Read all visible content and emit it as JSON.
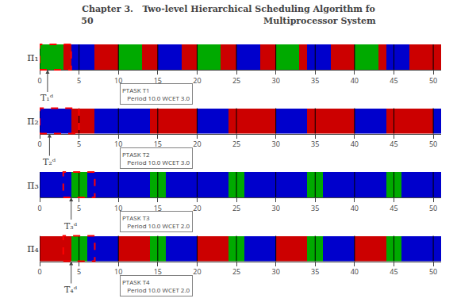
{
  "chart_data": {
    "type": "timeline",
    "title": "Chapter 3.   Two-level Hierarchical Scheduling Algorithm fo",
    "subtitle": "50                                                        Multiprocessor System",
    "xlim": [
      0,
      51
    ],
    "xticks": [
      0,
      5,
      10,
      15,
      20,
      25,
      30,
      35,
      40,
      45,
      50
    ],
    "grid": true,
    "rows": [
      {
        "name": "π₁",
        "segments": [
          {
            "start": 0,
            "end": 3,
            "color": "#00aa00"
          },
          {
            "start": 3,
            "end": 4,
            "color": "#cc0000"
          },
          {
            "start": 4,
            "end": 7,
            "color": "#0000cc"
          },
          {
            "start": 7,
            "end": 10,
            "color": "#cc0000"
          },
          {
            "start": 10,
            "end": 13,
            "color": "#00aa00"
          },
          {
            "start": 13,
            "end": 15,
            "color": "#cc0000"
          },
          {
            "start": 15,
            "end": 18,
            "color": "#0000cc"
          },
          {
            "start": 18,
            "end": 20,
            "color": "#cc0000"
          },
          {
            "start": 20,
            "end": 23,
            "color": "#00aa00"
          },
          {
            "start": 23,
            "end": 25,
            "color": "#cc0000"
          },
          {
            "start": 25,
            "end": 28,
            "color": "#0000cc"
          },
          {
            "start": 28,
            "end": 30,
            "color": "#cc0000"
          },
          {
            "start": 30,
            "end": 33,
            "color": "#00aa00"
          },
          {
            "start": 33,
            "end": 34,
            "color": "#cc0000"
          },
          {
            "start": 34,
            "end": 37,
            "color": "#0000cc"
          },
          {
            "start": 37,
            "end": 40,
            "color": "#cc0000"
          },
          {
            "start": 40,
            "end": 43,
            "color": "#00aa00"
          },
          {
            "start": 43,
            "end": 44,
            "color": "#cc0000"
          },
          {
            "start": 44,
            "end": 47,
            "color": "#0000cc"
          },
          {
            "start": 47,
            "end": 51,
            "color": "#cc0000"
          }
        ],
        "zoom": {
          "start": 0,
          "end": 4,
          "color": "#ff0000"
        },
        "annotation": "PTASK T1\n   Period 10.0 WCET 3.0",
        "label": "T₁ᵈ"
      },
      {
        "name": "π₂",
        "segments": [
          {
            "start": 0,
            "end": 4,
            "color": "#0000cc"
          },
          {
            "start": 4,
            "end": 7,
            "color": "#cc0000"
          },
          {
            "start": 7,
            "end": 10,
            "color": "#0000cc"
          },
          {
            "start": 10,
            "end": 14,
            "color": "#0000cc"
          },
          {
            "start": 14,
            "end": 20,
            "color": "#cc0000"
          },
          {
            "start": 20,
            "end": 24,
            "color": "#0000cc"
          },
          {
            "start": 24,
            "end": 30,
            "color": "#cc0000"
          },
          {
            "start": 30,
            "end": 34,
            "color": "#0000cc"
          },
          {
            "start": 34,
            "end": 40,
            "color": "#cc0000"
          },
          {
            "start": 40,
            "end": 44,
            "color": "#0000cc"
          },
          {
            "start": 44,
            "end": 50,
            "color": "#cc0000"
          },
          {
            "start": 50,
            "end": 51,
            "color": "#0000cc"
          }
        ],
        "zoom": {
          "start": 0,
          "end": 5,
          "color": "#ff0000"
        },
        "annotation": "PTASK T2\n   Period 10.0 WCET 3.0",
        "label": "T₂ᵈ"
      },
      {
        "name": "π₃",
        "segments": [
          {
            "start": 0,
            "end": 4,
            "color": "#0000cc"
          },
          {
            "start": 4,
            "end": 6,
            "color": "#00aa00"
          },
          {
            "start": 6,
            "end": 10,
            "color": "#0000cc"
          },
          {
            "start": 10,
            "end": 14,
            "color": "#0000cc"
          },
          {
            "start": 14,
            "end": 16,
            "color": "#00aa00"
          },
          {
            "start": 16,
            "end": 20,
            "color": "#0000cc"
          },
          {
            "start": 20,
            "end": 24,
            "color": "#0000cc"
          },
          {
            "start": 24,
            "end": 26,
            "color": "#00aa00"
          },
          {
            "start": 26,
            "end": 30,
            "color": "#0000cc"
          },
          {
            "start": 30,
            "end": 34,
            "color": "#0000cc"
          },
          {
            "start": 34,
            "end": 36,
            "color": "#00aa00"
          },
          {
            "start": 36,
            "end": 40,
            "color": "#0000cc"
          },
          {
            "start": 40,
            "end": 44,
            "color": "#0000cc"
          },
          {
            "start": 44,
            "end": 46,
            "color": "#00aa00"
          },
          {
            "start": 46,
            "end": 51,
            "color": "#0000cc"
          }
        ],
        "zoom": {
          "start": 3,
          "end": 7,
          "color": "#ff0000"
        },
        "annotation": "PTASK T3\n   Period 10.0 WCET 2.0",
        "label": "T₃ᵈ"
      },
      {
        "name": "π₄",
        "segments": [
          {
            "start": 0,
            "end": 4,
            "color": "#cc0000"
          },
          {
            "start": 4,
            "end": 6,
            "color": "#00aa00"
          },
          {
            "start": 6,
            "end": 10,
            "color": "#0000cc"
          },
          {
            "start": 10,
            "end": 14,
            "color": "#cc0000"
          },
          {
            "start": 14,
            "end": 16,
            "color": "#00aa00"
          },
          {
            "start": 16,
            "end": 20,
            "color": "#0000cc"
          },
          {
            "start": 20,
            "end": 24,
            "color": "#cc0000"
          },
          {
            "start": 24,
            "end": 26,
            "color": "#00aa00"
          },
          {
            "start": 26,
            "end": 30,
            "color": "#0000cc"
          },
          {
            "start": 30,
            "end": 34,
            "color": "#cc0000"
          },
          {
            "start": 34,
            "end": 36,
            "color": "#00aa00"
          },
          {
            "start": 36,
            "end": 40,
            "color": "#0000cc"
          },
          {
            "start": 40,
            "end": 44,
            "color": "#cc0000"
          },
          {
            "start": 44,
            "end": 46,
            "color": "#00aa00"
          },
          {
            "start": 46,
            "end": 51,
            "color": "#0000cc"
          }
        ],
        "zoom": {
          "start": 3,
          "end": 7,
          "color": "#ff0000"
        },
        "annotation": "PTASK T4\n   Period 10.0 WCET 2.0",
        "label": "T₄ᵈ"
      }
    ]
  }
}
